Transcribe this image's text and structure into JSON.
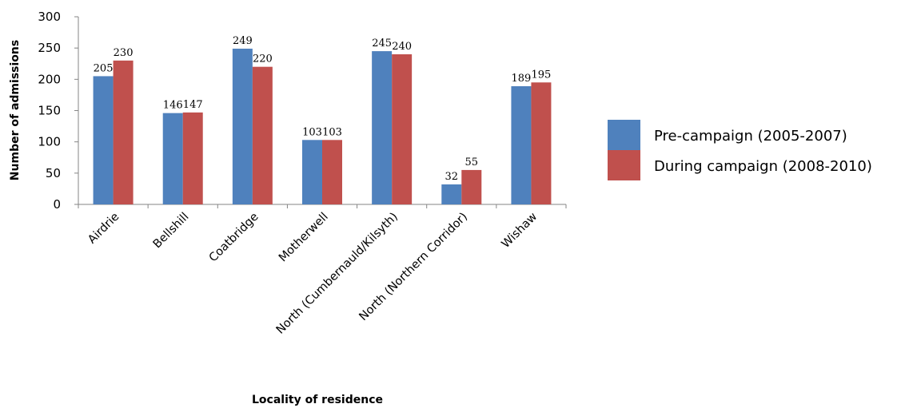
{
  "chart_data": {
    "type": "bar",
    "title": "",
    "xlabel": "Locality of residence",
    "ylabel": "Number of admissions",
    "ylim": [
      0,
      300
    ],
    "yticks": [
      0,
      50,
      100,
      150,
      200,
      250,
      300
    ],
    "grid": false,
    "legend_position": "right",
    "categories": [
      "Airdrie",
      "Bellshill",
      "Coatbridge",
      "Motherwell",
      "North (Cumbernauld/Kilsyth)",
      "North (Northern Corridor)",
      "Wishaw"
    ],
    "series": [
      {
        "name": "Pre-campaign (2005-2007)",
        "color": "#4F81BD",
        "values": [
          205,
          146,
          249,
          103,
          245,
          32,
          189
        ]
      },
      {
        "name": "During campaign (2008-2010)",
        "color": "#C0504D",
        "values": [
          230,
          147,
          220,
          103,
          240,
          55,
          195
        ]
      }
    ]
  }
}
